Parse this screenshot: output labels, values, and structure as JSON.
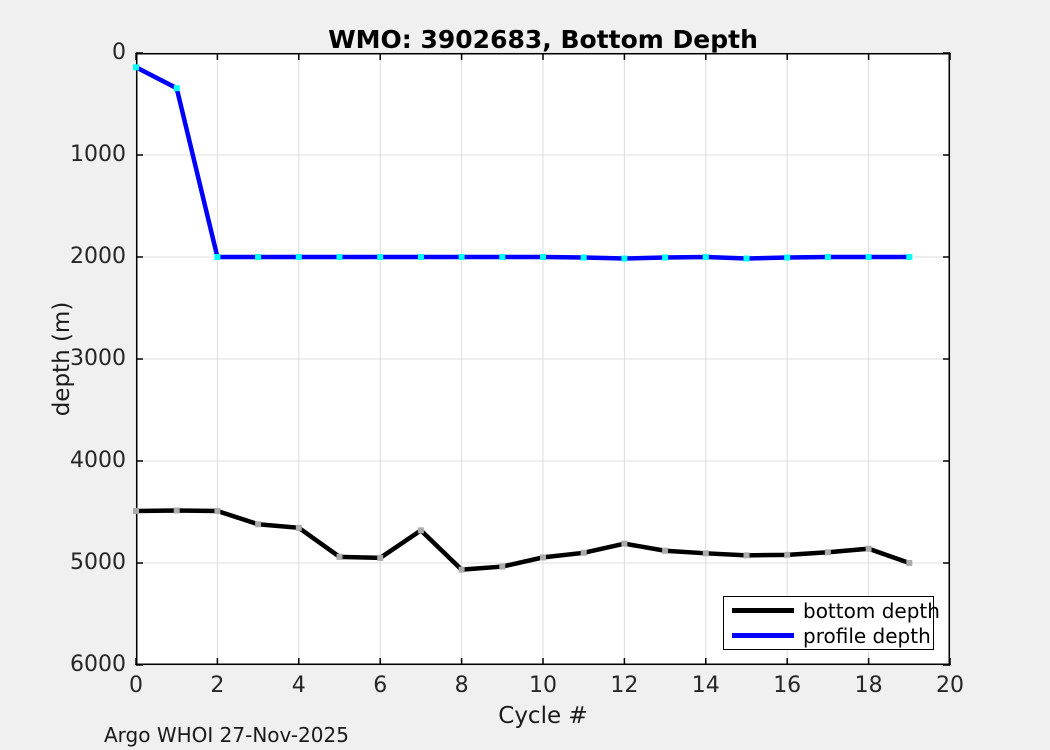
{
  "figure": {
    "title": "WMO: 3902683, Bottom Depth",
    "footer": "Argo WHOI 27-Nov-2025"
  },
  "chart_data": {
    "type": "line",
    "title": "WMO: 3902683, Bottom Depth",
    "xlabel": "Cycle #",
    "ylabel": "depth (m)",
    "xlim": [
      0,
      20
    ],
    "ylim": [
      0,
      6000
    ],
    "y_axis_inverted": true,
    "grid": true,
    "xticks": [
      0,
      2,
      4,
      6,
      8,
      10,
      12,
      14,
      16,
      18,
      20
    ],
    "yticks": [
      0,
      1000,
      2000,
      3000,
      4000,
      5000,
      6000
    ],
    "x": [
      0,
      1,
      2,
      3,
      4,
      5,
      6,
      7,
      8,
      9,
      10,
      11,
      12,
      13,
      14,
      15,
      16,
      17,
      18,
      19
    ],
    "series": [
      {
        "name": "bottom depth",
        "color": "#000000",
        "marker_color": "#ababab",
        "values": [
          4490,
          4485,
          4490,
          4620,
          4655,
          4940,
          4950,
          4680,
          5065,
          5035,
          4945,
          4900,
          4810,
          4880,
          4905,
          4925,
          4920,
          4895,
          4860,
          5000
        ]
      },
      {
        "name": "profile depth",
        "color": "#0000ff",
        "marker_color": "#00ffff",
        "values": [
          140,
          345,
          2000,
          2000,
          2000,
          2000,
          2000,
          2000,
          2000,
          2000,
          2000,
          2005,
          2015,
          2005,
          2000,
          2015,
          2005,
          2000,
          2000,
          2000
        ]
      }
    ],
    "legend": {
      "position": "bottom-right",
      "entries": [
        "bottom depth",
        "profile depth"
      ]
    },
    "annotation": "Argo WHOI 27-Nov-2025"
  },
  "colors": {
    "figure_bg": "#f0f0f0",
    "plot_bg": "#ffffff",
    "grid": "#dcdcdc",
    "axis_box": "#000000",
    "tick_label": "#262626"
  }
}
